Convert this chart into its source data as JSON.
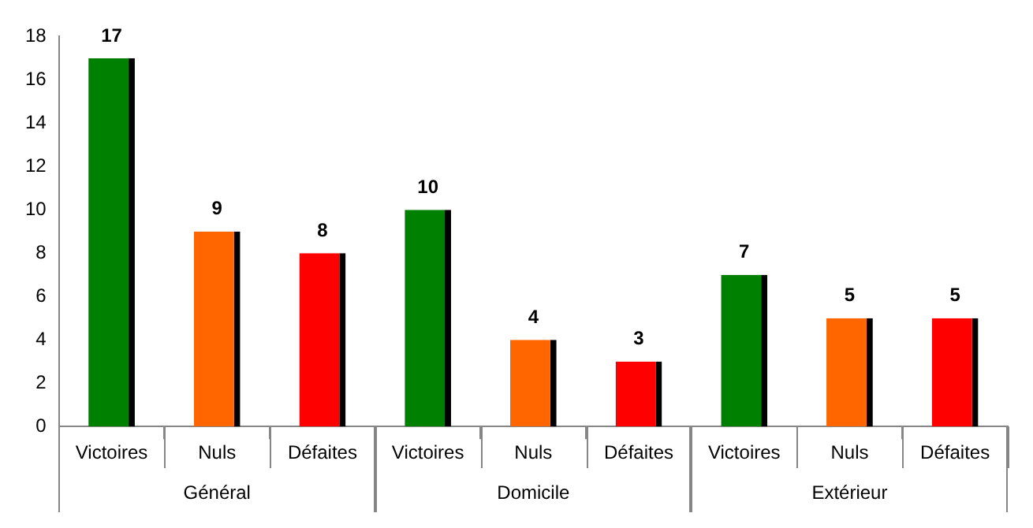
{
  "chart_data": {
    "type": "bar",
    "categories": [
      "Victoires",
      "Nuls",
      "Défaites",
      "Victoires",
      "Nuls",
      "Défaites",
      "Victoires",
      "Nuls",
      "Défaites"
    ],
    "values": [
      17,
      9,
      8,
      10,
      4,
      3,
      7,
      5,
      5
    ],
    "colors": [
      "#008000",
      "#ff6600",
      "#ff0000",
      "#008000",
      "#ff6600",
      "#ff0000",
      "#008000",
      "#ff6600",
      "#ff0000"
    ],
    "annotations": [
      "Général",
      "Domicile",
      "Extérieur"
    ],
    "ylim": [
      0,
      18
    ],
    "yticks": [
      0,
      2,
      4,
      6,
      8,
      10,
      12,
      14,
      16,
      18
    ],
    "data_labels": true,
    "grid": false,
    "legend": false
  }
}
